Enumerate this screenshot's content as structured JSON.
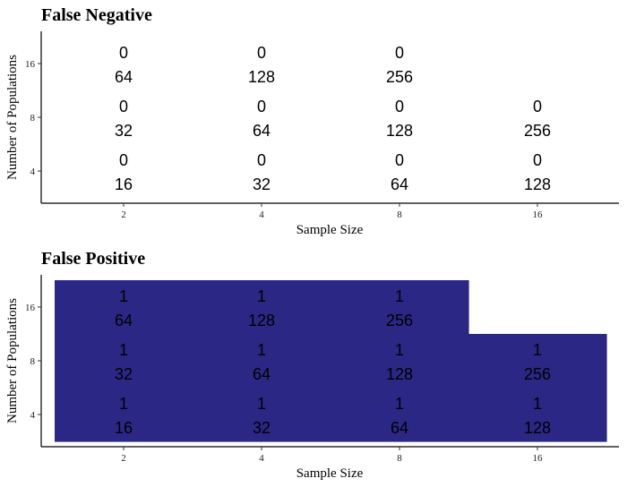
{
  "chart_data": [
    {
      "type": "heatmap",
      "title": "False Negative",
      "xlabel": "Sample Size",
      "ylabel": "Number of Populations",
      "x_ticks": [
        "2",
        "4",
        "8",
        "16"
      ],
      "y_ticks": [
        "4",
        "8",
        "16"
      ],
      "fill_color": "#2b2784",
      "cells": [
        {
          "x": "2",
          "y": "16",
          "value": 0,
          "label": "0",
          "sub_label": "64"
        },
        {
          "x": "4",
          "y": "16",
          "value": 0,
          "label": "0",
          "sub_label": "128"
        },
        {
          "x": "8",
          "y": "16",
          "value": 0,
          "label": "0",
          "sub_label": "256"
        },
        {
          "x": "2",
          "y": "8",
          "value": 0,
          "label": "0",
          "sub_label": "32"
        },
        {
          "x": "4",
          "y": "8",
          "value": 0,
          "label": "0",
          "sub_label": "64"
        },
        {
          "x": "8",
          "y": "8",
          "value": 0,
          "label": "0",
          "sub_label": "128"
        },
        {
          "x": "16",
          "y": "8",
          "value": 0,
          "label": "0",
          "sub_label": "256"
        },
        {
          "x": "2",
          "y": "4",
          "value": 0,
          "label": "0",
          "sub_label": "16"
        },
        {
          "x": "4",
          "y": "4",
          "value": 0,
          "label": "0",
          "sub_label": "32"
        },
        {
          "x": "8",
          "y": "4",
          "value": 0,
          "label": "0",
          "sub_label": "64"
        },
        {
          "x": "16",
          "y": "4",
          "value": 0,
          "label": "0",
          "sub_label": "128"
        }
      ]
    },
    {
      "type": "heatmap",
      "title": "False Positive",
      "xlabel": "Sample Size",
      "ylabel": "Number of Populations",
      "x_ticks": [
        "2",
        "4",
        "8",
        "16"
      ],
      "y_ticks": [
        "4",
        "8",
        "16"
      ],
      "fill_color": "#2b2784",
      "cells": [
        {
          "x": "2",
          "y": "16",
          "value": 1,
          "label": "1",
          "sub_label": "64"
        },
        {
          "x": "4",
          "y": "16",
          "value": 1,
          "label": "1",
          "sub_label": "128"
        },
        {
          "x": "8",
          "y": "16",
          "value": 1,
          "label": "1",
          "sub_label": "256"
        },
        {
          "x": "2",
          "y": "8",
          "value": 1,
          "label": "1",
          "sub_label": "32"
        },
        {
          "x": "4",
          "y": "8",
          "value": 1,
          "label": "1",
          "sub_label": "64"
        },
        {
          "x": "8",
          "y": "8",
          "value": 1,
          "label": "1",
          "sub_label": "128"
        },
        {
          "x": "16",
          "y": "8",
          "value": 1,
          "label": "1",
          "sub_label": "256"
        },
        {
          "x": "2",
          "y": "4",
          "value": 1,
          "label": "1",
          "sub_label": "16"
        },
        {
          "x": "4",
          "y": "4",
          "value": 1,
          "label": "1",
          "sub_label": "32"
        },
        {
          "x": "8",
          "y": "4",
          "value": 1,
          "label": "1",
          "sub_label": "64"
        },
        {
          "x": "16",
          "y": "4",
          "value": 1,
          "label": "1",
          "sub_label": "128"
        }
      ]
    }
  ]
}
